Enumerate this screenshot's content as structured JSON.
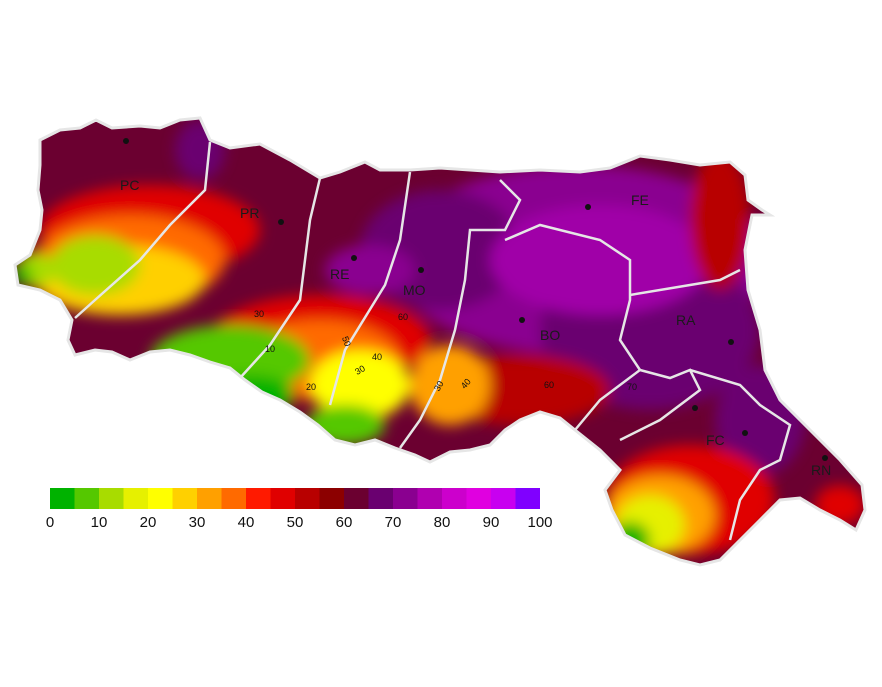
{
  "map": {
    "provinces": [
      {
        "code": "PC"
      },
      {
        "code": "PR"
      },
      {
        "code": "RE"
      },
      {
        "code": "MO"
      },
      {
        "code": "BO"
      },
      {
        "code": "FE"
      },
      {
        "code": "RA"
      },
      {
        "code": "FC"
      },
      {
        "code": "RN"
      }
    ],
    "isolines": [
      "30",
      "10",
      "20",
      "50",
      "40",
      "30",
      "60",
      "30",
      "40",
      "60",
      "70"
    ],
    "colors": {
      "low": "#00b200",
      "mid": "#ffff00",
      "high": "#e60000",
      "very_high": "#6b0030",
      "max": "#8a0090",
      "border": "#e6e6e6"
    }
  },
  "legend": {
    "colors": [
      "#00b200",
      "#55c800",
      "#a8dc00",
      "#e6f000",
      "#ffff00",
      "#ffd000",
      "#ffa000",
      "#ff6a00",
      "#ff1a00",
      "#e00000",
      "#b80000",
      "#8c0000",
      "#6b0030",
      "#6a0070",
      "#8a0090",
      "#b000b0",
      "#cc00cc",
      "#e000e0",
      "#c800f0",
      "#8000ff"
    ],
    "ticks": [
      "0",
      "10",
      "20",
      "30",
      "40",
      "50",
      "60",
      "70",
      "80",
      "90",
      "100"
    ]
  }
}
